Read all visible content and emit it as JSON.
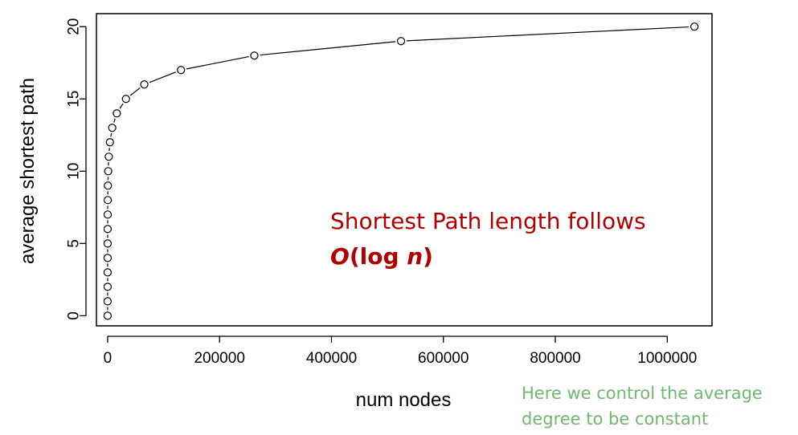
{
  "chart_data": {
    "type": "scatter",
    "connected": true,
    "xlabel": "num nodes",
    "ylabel": "average shortest path",
    "xlim": [
      -20000,
      1080000
    ],
    "ylim": [
      -0.7,
      20.9
    ],
    "xticks": [
      0,
      200000,
      400000,
      600000,
      800000,
      1000000
    ],
    "xtick_labels": [
      "0",
      "200000",
      "400000",
      "600000",
      "800000",
      "1000000"
    ],
    "yticks": [
      0,
      5,
      10,
      15,
      20
    ],
    "ytick_labels": [
      "0",
      "5",
      "10",
      "15",
      "20"
    ],
    "grid": false,
    "legend": "none",
    "marker": "open-circle",
    "x": [
      1,
      2,
      4,
      8,
      16,
      32,
      64,
      128,
      256,
      512,
      1024,
      2048,
      4096,
      8192,
      16384,
      32768,
      65536,
      131072,
      262144,
      524288,
      1048576
    ],
    "y": [
      0,
      1,
      2,
      3,
      4,
      5,
      6,
      7,
      8,
      9,
      10,
      11,
      12,
      13,
      14,
      15,
      16,
      17,
      18,
      19,
      20
    ]
  },
  "annotations": {
    "main_line1": "Shortest Path length follows",
    "main_formula_o": "O",
    "main_formula_open": "(log ",
    "main_formula_n": "n",
    "main_formula_close": ")",
    "side_line1": "Here we control the average",
    "side_line2": "degree to be constant"
  },
  "colors": {
    "main_annotation": "#b00000",
    "side_annotation": "#6fb86f",
    "series": "#000000"
  }
}
